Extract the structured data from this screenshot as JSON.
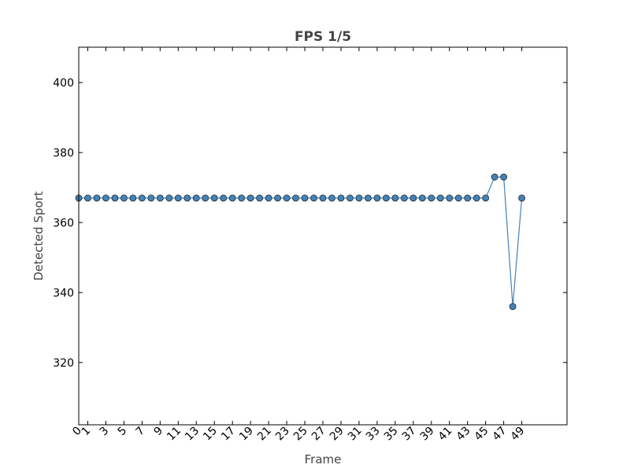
{
  "chart_data": {
    "type": "line",
    "title": "FPS 1/5",
    "x_label": "Frame",
    "y_label": "Detected Sport",
    "x": [
      0,
      1,
      2,
      3,
      4,
      5,
      6,
      7,
      8,
      9,
      10,
      11,
      12,
      13,
      14,
      15,
      16,
      17,
      18,
      19,
      20,
      21,
      22,
      23,
      24,
      25,
      26,
      27,
      28,
      29,
      30,
      31,
      32,
      33,
      34,
      35,
      36,
      37,
      38,
      39,
      40,
      41,
      42,
      43,
      44,
      45,
      46,
      47,
      48,
      49
    ],
    "series": [
      {
        "name": "Detected Sport",
        "color": "#4682b4",
        "values": [
          367,
          367,
          367,
          367,
          367,
          367,
          367,
          367,
          367,
          367,
          367,
          367,
          367,
          367,
          367,
          367,
          367,
          367,
          367,
          367,
          367,
          367,
          367,
          367,
          367,
          367,
          367,
          367,
          367,
          367,
          367,
          367,
          367,
          367,
          367,
          367,
          367,
          367,
          367,
          367,
          367,
          367,
          367,
          367,
          367,
          367,
          373,
          373,
          336,
          367
        ]
      }
    ],
    "xlim": [
      0,
      54
    ],
    "ylim": [
      302.2,
      410.1
    ],
    "xticks": [
      0,
      1,
      3,
      5,
      7,
      9,
      11,
      13,
      15,
      17,
      19,
      21,
      23,
      25,
      27,
      29,
      31,
      33,
      35,
      37,
      39,
      41,
      43,
      45,
      47,
      49
    ],
    "yticks": [
      320,
      340,
      360,
      380,
      400
    ]
  }
}
